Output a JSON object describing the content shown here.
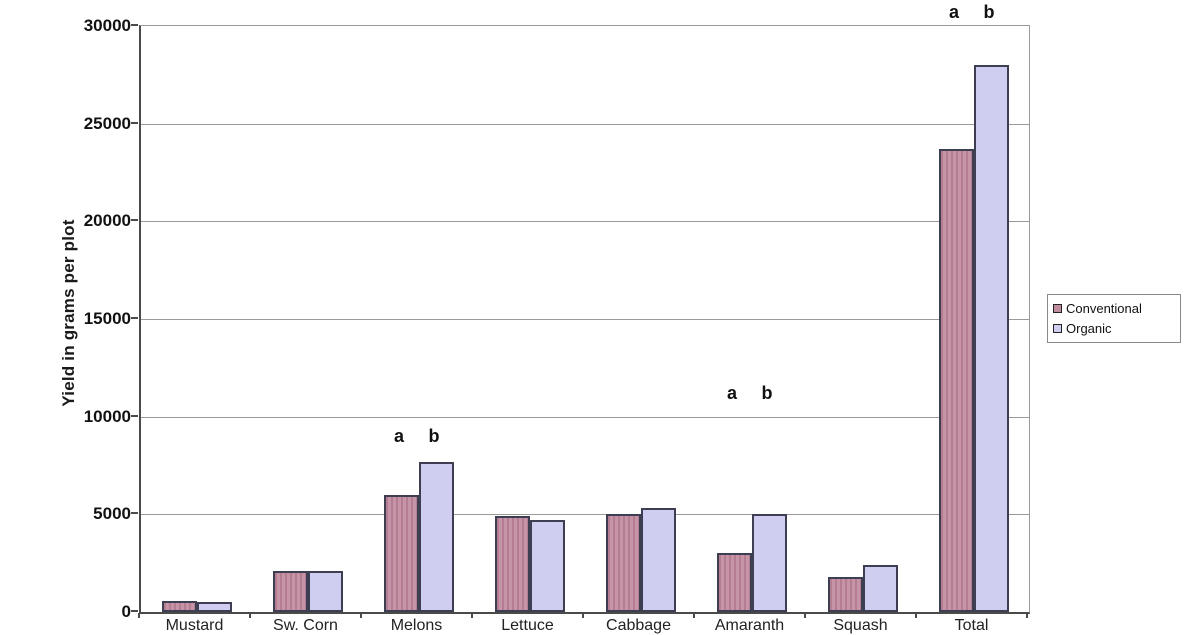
{
  "chart_data": {
    "type": "bar",
    "title": "",
    "xlabel": "",
    "ylabel": "Yield in grams per plot",
    "ylim": [
      0,
      30000
    ],
    "ytick_step": 5000,
    "yticks": [
      0,
      5000,
      10000,
      15000,
      20000,
      25000,
      30000
    ],
    "grid": true,
    "legend_position": "right",
    "categories": [
      "Mustard",
      "Sw. Corn",
      "Melons",
      "Lettuce",
      "Cabbage",
      "Amaranth",
      "Squash",
      "Total"
    ],
    "categories_clipped_at_bottom": true,
    "series": [
      {
        "name": "Conventional",
        "color": "#c18ba0",
        "values": [
          550,
          2100,
          6000,
          4900,
          5000,
          3000,
          1800,
          23700
        ]
      },
      {
        "name": "Organic",
        "color": "#cfcef1",
        "values": [
          500,
          2100,
          7700,
          4700,
          5300,
          5000,
          2400,
          28000
        ]
      }
    ],
    "annotations": [
      {
        "category_index": 2,
        "labels": [
          "a",
          "b"
        ],
        "y_data": 9000
      },
      {
        "category_index": 5,
        "labels": [
          "a",
          "b"
        ],
        "y_data": 11200
      },
      {
        "category_index": 7,
        "labels": [
          "a",
          "b"
        ],
        "y_data": 30700
      }
    ]
  },
  "colors": {
    "background": "#ffffff",
    "conventional_fill": "#c18ba0",
    "organic_fill": "#cfcef1",
    "bar_border": "#3e3e52",
    "gridline": "#9a9a9a",
    "axis": "#4a4a4a",
    "text": "#111111"
  }
}
